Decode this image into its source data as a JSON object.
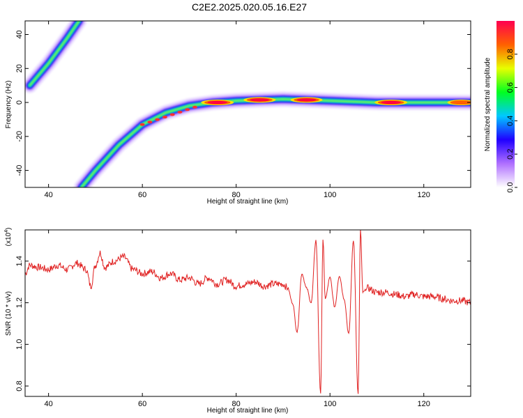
{
  "title": "C2E2.2025.020.05.16.E27",
  "chart_data": [
    {
      "type": "heatmap",
      "xlabel": "Height of straight line (km)",
      "ylabel": "Frequency (Hz)",
      "xlim": [
        35,
        130
      ],
      "ylim": [
        -50,
        48
      ],
      "xticks": [
        40,
        60,
        80,
        100,
        120
      ],
      "yticks": [
        -40,
        -20,
        0,
        20,
        40
      ],
      "colorbar": {
        "label": "Normalized spectral amplitude",
        "range": [
          0,
          1
        ],
        "ticks": [
          0.0,
          0.2,
          0.4,
          0.6,
          0.8
        ],
        "colors": [
          "#ffffff",
          "#b070ff",
          "#2000ff",
          "#00c8ff",
          "#00ff20",
          "#e8ff00",
          "#ff6000",
          "#ff0050"
        ]
      },
      "ridges": [
        {
          "x": [
            36,
            40,
            44,
            46.5
          ],
          "y": [
            10,
            23,
            38,
            48
          ]
        },
        {
          "x": [
            47,
            50,
            55,
            60,
            65,
            70,
            75,
            80,
            90,
            100,
            110,
            120,
            130
          ],
          "y": [
            -50,
            -40,
            -25,
            -13,
            -6,
            -2,
            0,
            1,
            2,
            1,
            0,
            0,
            0
          ]
        }
      ],
      "hotspots": [
        {
          "x": 76,
          "y": 0,
          "amp": 0.95
        },
        {
          "x": 85,
          "y": 1.5,
          "amp": 0.92
        },
        {
          "x": 95,
          "y": 1.5,
          "amp": 0.9
        },
        {
          "x": 113,
          "y": 0,
          "amp": 0.95
        },
        {
          "x": 128,
          "y": 0,
          "amp": 0.6
        }
      ]
    },
    {
      "type": "line",
      "xlabel": "Height of straight line (km)",
      "ylabel": "SNR (10 * v/v)",
      "scale_label": "(x10",
      "scale_exp": "4",
      "scale_close": ")",
      "xlim": [
        35,
        130
      ],
      "ylim": [
        0.75,
        1.55
      ],
      "xticks": [
        40,
        60,
        80,
        100,
        120
      ],
      "yticks": [
        0.8,
        1.0,
        1.2,
        1.4
      ],
      "series": [
        {
          "color": "#e02020",
          "x": [
            35,
            36,
            38,
            40,
            42,
            44,
            46,
            48,
            49,
            50,
            51,
            52,
            54,
            56,
            58,
            60,
            62,
            64,
            66,
            68,
            70,
            72,
            74,
            76,
            78,
            80,
            82,
            84,
            86,
            88,
            90,
            91,
            92,
            93,
            94,
            95,
            96,
            97,
            98,
            98.5,
            99,
            100,
            101,
            102,
            103,
            104,
            105,
            106,
            106.5,
            107,
            108,
            110,
            112,
            114,
            116,
            118,
            120,
            122,
            124,
            126,
            128,
            130
          ],
          "y": [
            1.34,
            1.38,
            1.37,
            1.36,
            1.38,
            1.36,
            1.39,
            1.36,
            1.28,
            1.38,
            1.44,
            1.37,
            1.4,
            1.42,
            1.36,
            1.34,
            1.35,
            1.32,
            1.34,
            1.31,
            1.32,
            1.29,
            1.32,
            1.29,
            1.31,
            1.28,
            1.29,
            1.3,
            1.28,
            1.29,
            1.29,
            1.27,
            1.2,
            1.06,
            1.34,
            1.27,
            1.2,
            1.5,
            0.76,
            1.5,
            1.22,
            1.32,
            1.18,
            1.33,
            1.22,
            1.05,
            1.5,
            0.76,
            1.55,
            1.25,
            1.27,
            1.25,
            1.25,
            1.24,
            1.23,
            1.24,
            1.23,
            1.23,
            1.22,
            1.21,
            1.21,
            1.2
          ]
        }
      ]
    }
  ]
}
